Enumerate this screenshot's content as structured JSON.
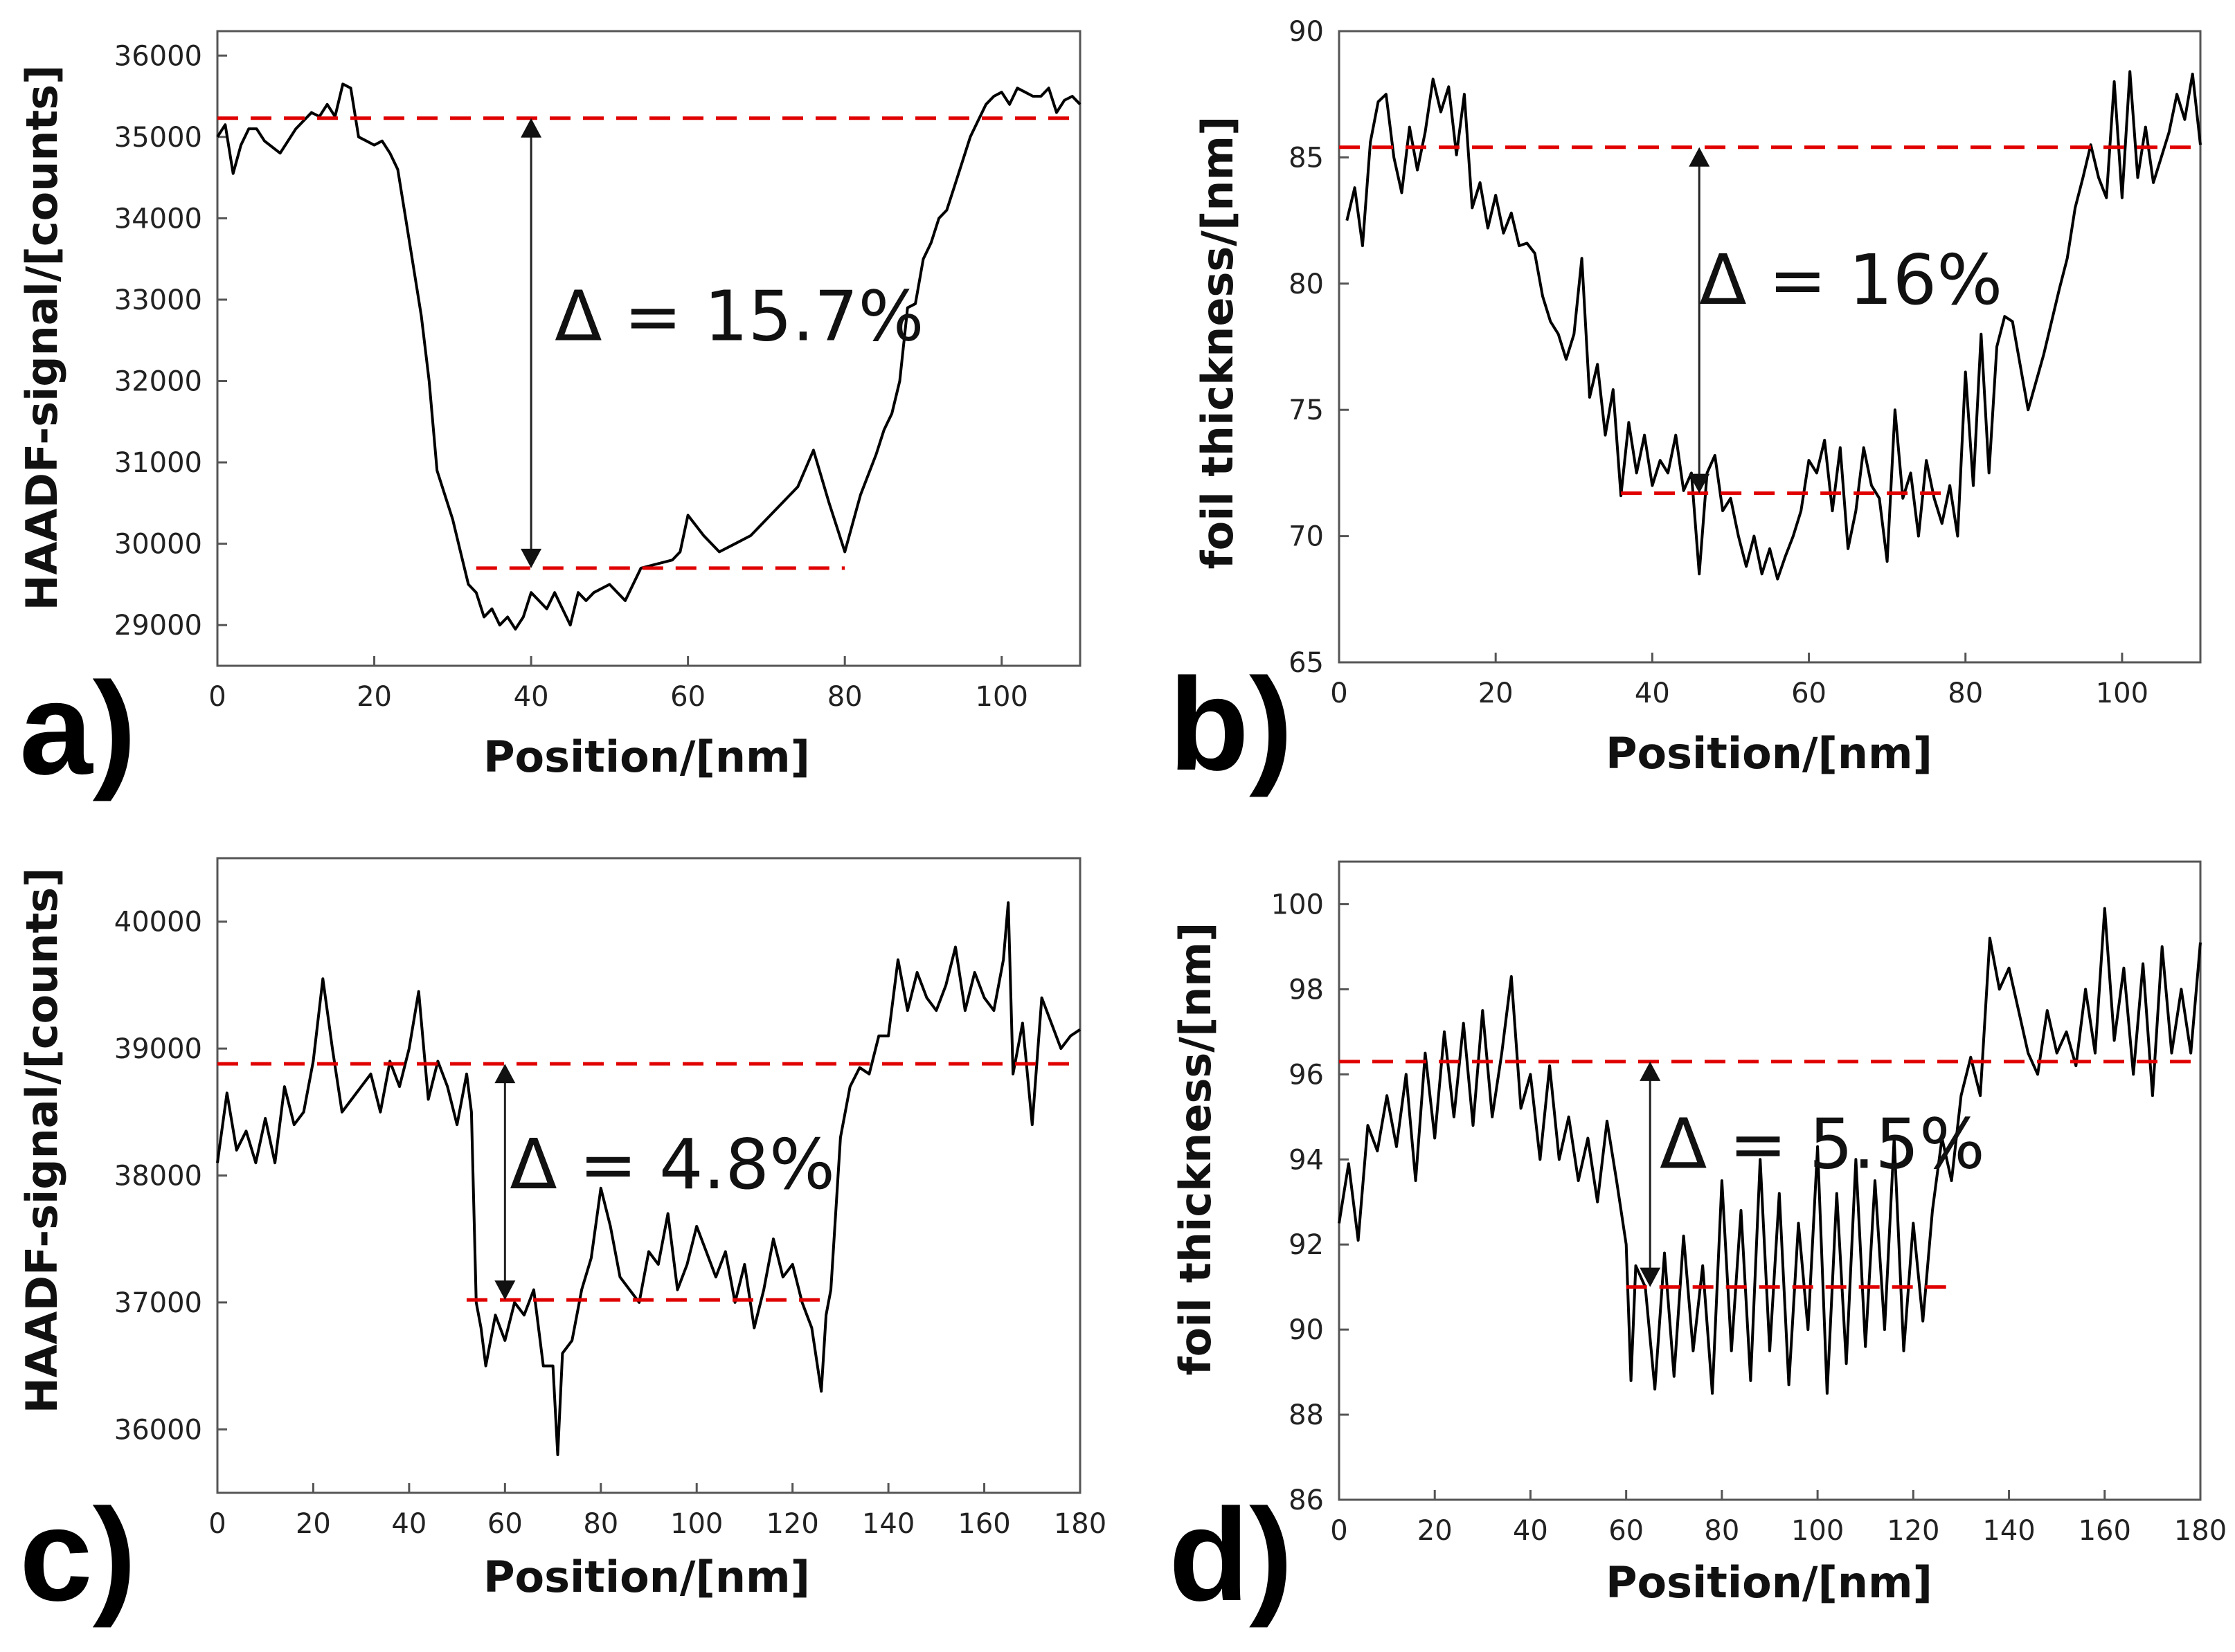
{
  "figure": {
    "colors": {
      "data_line": "#000000",
      "reference_line": "#e00000",
      "frame": "#555555",
      "text": "#111111"
    }
  },
  "chart_data": [
    {
      "panel": "a)",
      "type": "line",
      "xlabel": "Position/[nm]",
      "ylabel": "HAADF-signal/[counts]",
      "xlim": [
        0,
        110
      ],
      "ylim": [
        28500,
        36300
      ],
      "xticks": [
        0,
        20,
        40,
        60,
        80,
        100
      ],
      "yticks": [
        29000,
        30000,
        31000,
        32000,
        33000,
        34000,
        35000,
        36000
      ],
      "reference_lines": [
        {
          "y": 35230,
          "x_start": 0,
          "x_end": 110
        },
        {
          "y": 29700,
          "x_start": 33,
          "x_end": 80
        }
      ],
      "arrow": {
        "x": 40,
        "y_top": 35230,
        "y_bottom": 29700
      },
      "annotation": "Δ = 15.7%",
      "annotation_at": {
        "x": 43,
        "y": 32500
      },
      "series": [
        {
          "name": "HAADF-signal",
          "x": [
            0,
            1,
            2,
            3,
            4,
            5,
            6,
            8,
            10,
            12,
            13,
            14,
            15,
            16,
            17,
            18,
            19,
            20,
            21,
            22,
            23,
            24,
            25,
            26,
            27,
            28,
            29,
            30,
            31,
            32,
            33,
            34,
            35,
            36,
            37,
            38,
            39,
            40,
            41,
            42,
            43,
            44,
            45,
            46,
            47,
            48,
            50,
            52,
            54,
            56,
            58,
            59,
            60,
            62,
            64,
            66,
            68,
            70,
            72,
            74,
            76,
            78,
            79,
            80,
            82,
            84,
            85,
            86,
            87,
            88,
            89,
            90,
            91,
            92,
            93,
            94,
            95,
            96,
            97,
            98,
            99,
            100,
            101,
            102,
            103,
            104,
            105,
            106,
            107,
            108,
            109,
            110
          ],
          "y": [
            35000,
            35150,
            34550,
            34900,
            35100,
            35100,
            34950,
            34800,
            35100,
            35300,
            35250,
            35400,
            35250,
            35650,
            35600,
            35000,
            34950,
            34900,
            34950,
            34800,
            34600,
            34000,
            33400,
            32800,
            32000,
            30900,
            30600,
            30300,
            29900,
            29500,
            29400,
            29100,
            29200,
            29000,
            29100,
            28950,
            29100,
            29400,
            29300,
            29200,
            29400,
            29200,
            29000,
            29400,
            29300,
            29400,
            29500,
            29300,
            29700,
            29750,
            29800,
            29900,
            30350,
            30100,
            29900,
            30000,
            30100,
            30300,
            30500,
            30700,
            31150,
            30500,
            30200,
            29900,
            30600,
            31100,
            31400,
            31600,
            32000,
            32900,
            32950,
            33500,
            33700,
            34000,
            34100,
            34400,
            34700,
            35000,
            35200,
            35400,
            35500,
            35550,
            35400,
            35600,
            35550,
            35500,
            35500,
            35600,
            35300,
            35450,
            35500,
            35400
          ]
        }
      ]
    },
    {
      "panel": "b)",
      "type": "line",
      "xlabel": "Position/[nm]",
      "ylabel": "foil thickness/[nm]",
      "xlim": [
        0,
        110
      ],
      "ylim": [
        65,
        90
      ],
      "xticks": [
        0,
        20,
        40,
        60,
        80,
        100
      ],
      "yticks": [
        65,
        70,
        75,
        80,
        85,
        90
      ],
      "reference_lines": [
        {
          "y": 85.4,
          "x_start": 0,
          "x_end": 110
        },
        {
          "y": 71.7,
          "x_start": 36,
          "x_end": 78
        }
      ],
      "arrow": {
        "x": 46,
        "y_top": 85.4,
        "y_bottom": 71.7
      },
      "annotation": "Δ = 16%",
      "annotation_at": {
        "x": 46,
        "y": 79.2
      },
      "series": [
        {
          "name": "foil thickness",
          "x": [
            1,
            2,
            3,
            4,
            5,
            6,
            7,
            8,
            9,
            10,
            11,
            12,
            13,
            14,
            15,
            16,
            17,
            18,
            19,
            20,
            21,
            22,
            23,
            24,
            25,
            26,
            27,
            28,
            29,
            30,
            31,
            32,
            33,
            34,
            35,
            36,
            37,
            38,
            39,
            40,
            41,
            42,
            43,
            44,
            45,
            46,
            47,
            48,
            49,
            50,
            51,
            52,
            53,
            54,
            55,
            56,
            57,
            58,
            59,
            60,
            61,
            62,
            63,
            64,
            65,
            66,
            67,
            68,
            69,
            70,
            71,
            72,
            73,
            74,
            75,
            76,
            77,
            78,
            79,
            80,
            81,
            82,
            83,
            84,
            85,
            86,
            88,
            90,
            92,
            93,
            94,
            95,
            96,
            97,
            98,
            99,
            100,
            101,
            102,
            103,
            104,
            105,
            106,
            107,
            108,
            109,
            110
          ],
          "y": [
            82.5,
            83.8,
            81.5,
            85.6,
            87.2,
            87.5,
            85.0,
            83.6,
            86.2,
            84.5,
            86.0,
            88.1,
            86.8,
            87.8,
            85.1,
            87.5,
            83.0,
            84.0,
            82.2,
            83.5,
            82.0,
            82.8,
            81.5,
            81.6,
            81.2,
            79.5,
            78.5,
            78.0,
            77.0,
            78.0,
            81.0,
            75.5,
            76.8,
            74.0,
            75.8,
            71.6,
            74.5,
            72.5,
            74.0,
            72.0,
            73.0,
            72.5,
            74.0,
            71.8,
            72.5,
            68.5,
            72.5,
            73.2,
            71.0,
            71.5,
            70.0,
            68.8,
            70.0,
            68.5,
            69.5,
            68.3,
            69.2,
            70.0,
            71.0,
            73.0,
            72.5,
            73.8,
            71.0,
            73.5,
            69.5,
            71.0,
            73.5,
            72.0,
            71.5,
            69.0,
            75.0,
            71.5,
            72.5,
            70.0,
            73.0,
            71.5,
            70.5,
            72.0,
            70.0,
            76.5,
            72.0,
            78.0,
            72.5,
            77.5,
            78.7,
            78.5,
            75.0,
            77.2,
            79.8,
            81.0,
            83.0,
            84.2,
            85.5,
            84.2,
            83.4,
            88.0,
            83.4,
            88.4,
            84.2,
            86.2,
            84.0,
            85.0,
            86.0,
            87.5,
            86.5,
            88.3,
            85.5
          ]
        }
      ]
    },
    {
      "panel": "c)",
      "type": "line",
      "xlabel": "Position/[nm]",
      "ylabel": "HAADF-signal/[counts]",
      "xlim": [
        0,
        180
      ],
      "ylim": [
        35500,
        40500
      ],
      "xticks": [
        0,
        20,
        40,
        60,
        80,
        100,
        120,
        140,
        160,
        180
      ],
      "yticks": [
        36000,
        37000,
        38000,
        39000,
        40000
      ],
      "reference_lines": [
        {
          "y": 38880,
          "x_start": 0,
          "x_end": 180
        },
        {
          "y": 37020,
          "x_start": 52,
          "x_end": 128
        }
      ],
      "arrow": {
        "x": 60,
        "y_top": 38880,
        "y_bottom": 37020
      },
      "annotation": "Δ  = 4.8%",
      "annotation_at": {
        "x": 61,
        "y": 37900
      },
      "series": [
        {
          "name": "HAADF-signal",
          "x": [
            0,
            2,
            4,
            6,
            8,
            10,
            12,
            14,
            16,
            18,
            20,
            22,
            24,
            26,
            28,
            30,
            32,
            34,
            36,
            38,
            40,
            42,
            44,
            46,
            48,
            50,
            52,
            53,
            54,
            55,
            56,
            58,
            60,
            62,
            64,
            66,
            68,
            70,
            71,
            72,
            74,
            76,
            78,
            80,
            82,
            84,
            86,
            88,
            90,
            92,
            94,
            96,
            98,
            100,
            102,
            104,
            106,
            108,
            110,
            112,
            114,
            116,
            118,
            120,
            122,
            124,
            126,
            127,
            128,
            130,
            132,
            134,
            136,
            138,
            140,
            142,
            144,
            146,
            148,
            150,
            152,
            154,
            156,
            158,
            160,
            162,
            164,
            165,
            166,
            168,
            170,
            172,
            174,
            176,
            178,
            180
          ],
          "y": [
            38100,
            38650,
            38200,
            38350,
            38100,
            38450,
            38100,
            38700,
            38400,
            38500,
            38900,
            39550,
            39000,
            38500,
            38600,
            38700,
            38800,
            38500,
            38900,
            38700,
            39000,
            39450,
            38600,
            38900,
            38700,
            38400,
            38800,
            38500,
            37000,
            36800,
            36500,
            36900,
            36700,
            37000,
            36900,
            37100,
            36500,
            36500,
            35800,
            36600,
            36700,
            37100,
            37350,
            37900,
            37600,
            37200,
            37100,
            37000,
            37400,
            37300,
            37700,
            37100,
            37300,
            37600,
            37400,
            37200,
            37400,
            37000,
            37300,
            36800,
            37100,
            37500,
            37200,
            37300,
            37000,
            36800,
            36300,
            36900,
            37100,
            38300,
            38700,
            38850,
            38800,
            39100,
            39100,
            39700,
            39300,
            39600,
            39400,
            39300,
            39500,
            39800,
            39300,
            39600,
            39400,
            39300,
            39700,
            40150,
            38800,
            39200,
            38400,
            39400,
            39200,
            39000,
            39100,
            39150
          ]
        }
      ]
    },
    {
      "panel": "d)",
      "type": "line",
      "xlabel": "Position/[nm]",
      "ylabel": "foil thickness/[nm]",
      "xlim": [
        0,
        180
      ],
      "ylim": [
        86,
        101
      ],
      "xticks": [
        0,
        20,
        40,
        60,
        80,
        100,
        120,
        140,
        160,
        180
      ],
      "yticks": [
        86,
        88,
        90,
        92,
        94,
        96,
        98,
        100
      ],
      "reference_lines": [
        {
          "y": 96.3,
          "x_start": 0,
          "x_end": 180
        },
        {
          "y": 91.0,
          "x_start": 60,
          "x_end": 128
        }
      ],
      "arrow": {
        "x": 65,
        "y_top": 96.3,
        "y_bottom": 91.0
      },
      "annotation": "Δ  = 5.5%",
      "annotation_at": {
        "x": 67,
        "y": 93.8
      },
      "series": [
        {
          "name": "foil thickness",
          "x": [
            0,
            2,
            4,
            6,
            8,
            10,
            12,
            14,
            16,
            18,
            20,
            22,
            24,
            26,
            28,
            30,
            32,
            34,
            36,
            38,
            40,
            42,
            44,
            46,
            48,
            50,
            52,
            54,
            56,
            58,
            60,
            61,
            62,
            64,
            66,
            68,
            70,
            72,
            74,
            76,
            78,
            80,
            82,
            84,
            86,
            88,
            90,
            92,
            94,
            96,
            98,
            100,
            102,
            104,
            106,
            108,
            110,
            112,
            114,
            116,
            118,
            120,
            122,
            124,
            126,
            128,
            130,
            132,
            134,
            136,
            138,
            140,
            142,
            144,
            146,
            148,
            150,
            152,
            154,
            156,
            158,
            160,
            162,
            164,
            166,
            168,
            170,
            172,
            174,
            176,
            178,
            180
          ],
          "y": [
            92.5,
            93.9,
            92.1,
            94.8,
            94.2,
            95.5,
            94.3,
            96.0,
            93.5,
            96.5,
            94.5,
            97.0,
            95.0,
            97.2,
            94.8,
            97.5,
            95.0,
            96.5,
            98.3,
            95.2,
            96.0,
            94.0,
            96.2,
            94.0,
            95.0,
            93.5,
            94.5,
            93.0,
            94.9,
            93.5,
            92.0,
            88.8,
            91.5,
            91.0,
            88.6,
            91.8,
            88.9,
            92.2,
            89.5,
            91.5,
            88.5,
            93.5,
            89.5,
            92.8,
            88.8,
            94.0,
            89.5,
            93.2,
            88.7,
            92.5,
            90.0,
            94.3,
            88.5,
            93.2,
            89.2,
            94.0,
            89.6,
            93.5,
            90.0,
            94.5,
            89.5,
            92.5,
            90.2,
            92.8,
            94.5,
            93.5,
            95.5,
            96.4,
            95.5,
            99.2,
            98.0,
            98.5,
            97.5,
            96.5,
            96.0,
            97.5,
            96.5,
            97.0,
            96.2,
            98.0,
            96.5,
            99.9,
            96.8,
            98.5,
            96.0,
            98.6,
            95.5,
            99.0,
            96.5,
            98.0,
            96.5,
            99.1
          ]
        }
      ]
    }
  ]
}
